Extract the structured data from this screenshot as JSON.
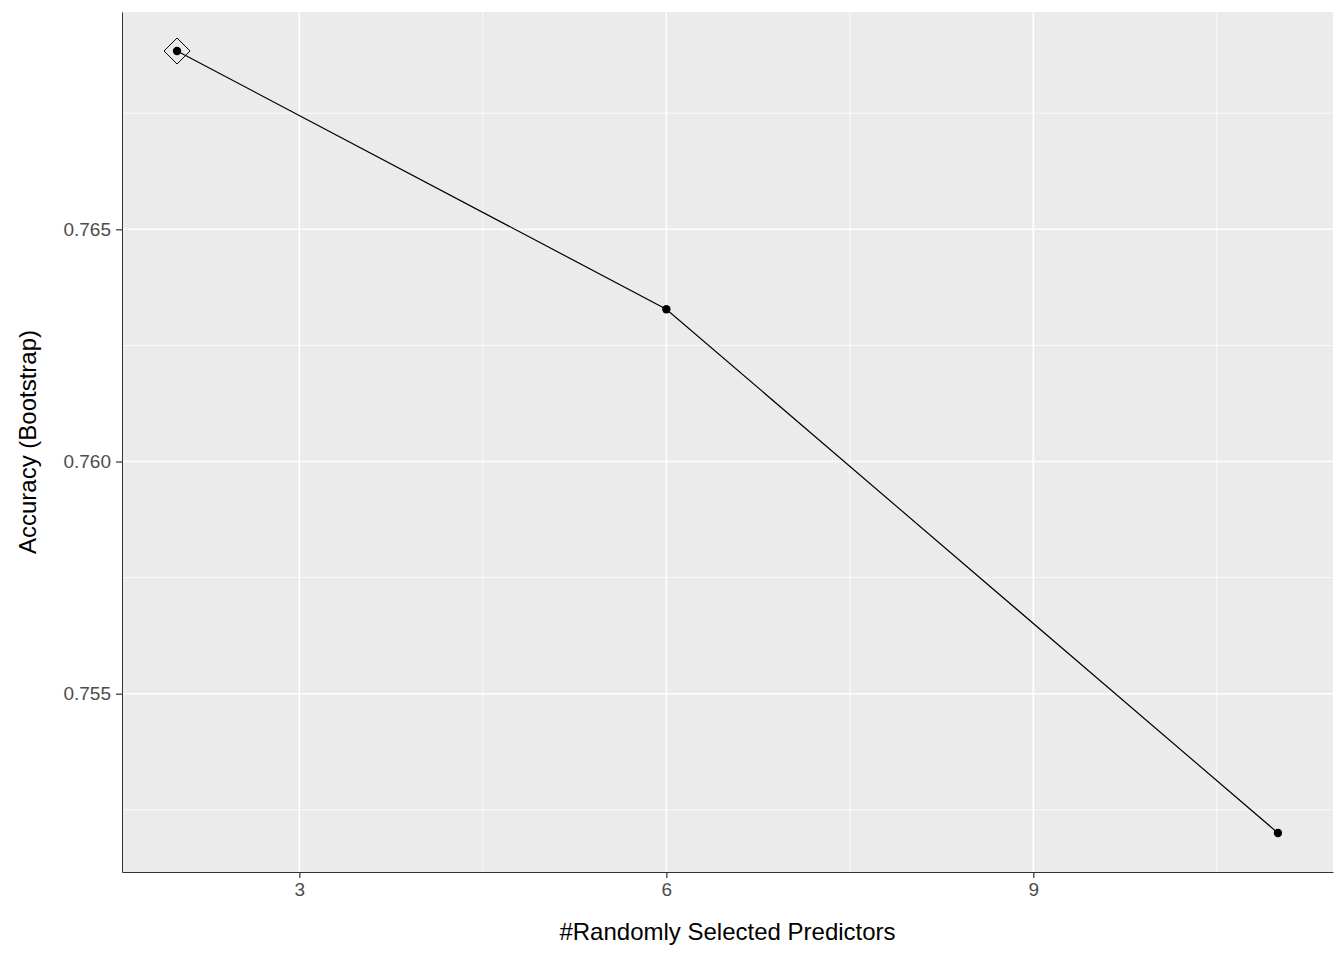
{
  "chart_data": {
    "type": "line",
    "x_label": "#Randomly Selected Predictors",
    "y_label": "Accuracy (Bootstrap)",
    "x": [
      2,
      6,
      11
    ],
    "values": [
      0.76884,
      0.76328,
      0.752
    ],
    "xlim": [
      1.55,
      11.45
    ],
    "ylim": [
      0.75116,
      0.76968
    ],
    "xticks": [
      3,
      6,
      9
    ],
    "yticks": [
      0.755,
      {
        "value": 0.76,
        "label": "0.760"
      },
      0.765
    ],
    "grid": true,
    "marker": "circle",
    "color": "#000000"
  }
}
